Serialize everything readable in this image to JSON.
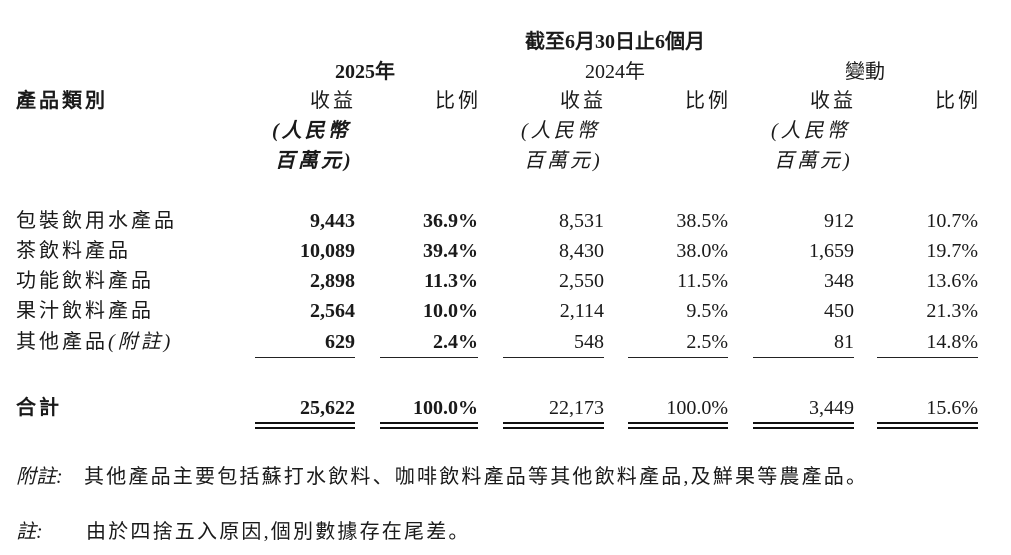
{
  "header": {
    "period": "截至6月30日止6個月",
    "year_2025": "2025年",
    "year_2024": "2024年",
    "change": "變動",
    "category": "產品類別",
    "revenue": "收益",
    "ratio": "比例",
    "unit_line1": "(人民幣",
    "unit_line2": "百萬元)"
  },
  "rows": [
    {
      "category": "包裝飲用水產品",
      "rev_2025": "9,443",
      "ratio_2025": "36.9%",
      "rev_2024": "8,531",
      "ratio_2024": "38.5%",
      "rev_change": "912",
      "ratio_change": "10.7%"
    },
    {
      "category": "茶飲料產品",
      "rev_2025": "10,089",
      "ratio_2025": "39.4%",
      "rev_2024": "8,430",
      "ratio_2024": "38.0%",
      "rev_change": "1,659",
      "ratio_change": "19.7%"
    },
    {
      "category": "功能飲料產品",
      "rev_2025": "2,898",
      "ratio_2025": "11.3%",
      "rev_2024": "2,550",
      "ratio_2024": "11.5%",
      "rev_change": "348",
      "ratio_change": "13.6%"
    },
    {
      "category": "果汁飲料產品",
      "rev_2025": "2,564",
      "ratio_2025": "10.0%",
      "rev_2024": "2,114",
      "ratio_2024": "9.5%",
      "rev_change": "450",
      "ratio_change": "21.3%"
    },
    {
      "category": "其他產品",
      "category_note": "(附註)",
      "rev_2025": "629",
      "ratio_2025": "2.4%",
      "rev_2024": "548",
      "ratio_2024": "2.5%",
      "rev_change": "81",
      "ratio_change": "14.8%"
    }
  ],
  "total": {
    "category": "合計",
    "rev_2025": "25,622",
    "ratio_2025": "100.0%",
    "rev_2024": "22,173",
    "ratio_2024": "100.0%",
    "rev_change": "3,449",
    "ratio_change": "15.6%"
  },
  "notes": {
    "appendix_label": "附註:",
    "appendix_text": "其他產品主要包括蘇打水飲料、咖啡飲料產品等其他飲料產品,及鮮果等農產品。",
    "note_label": "註:",
    "note_text": "由於四捨五入原因,個別數據存在尾差。"
  }
}
